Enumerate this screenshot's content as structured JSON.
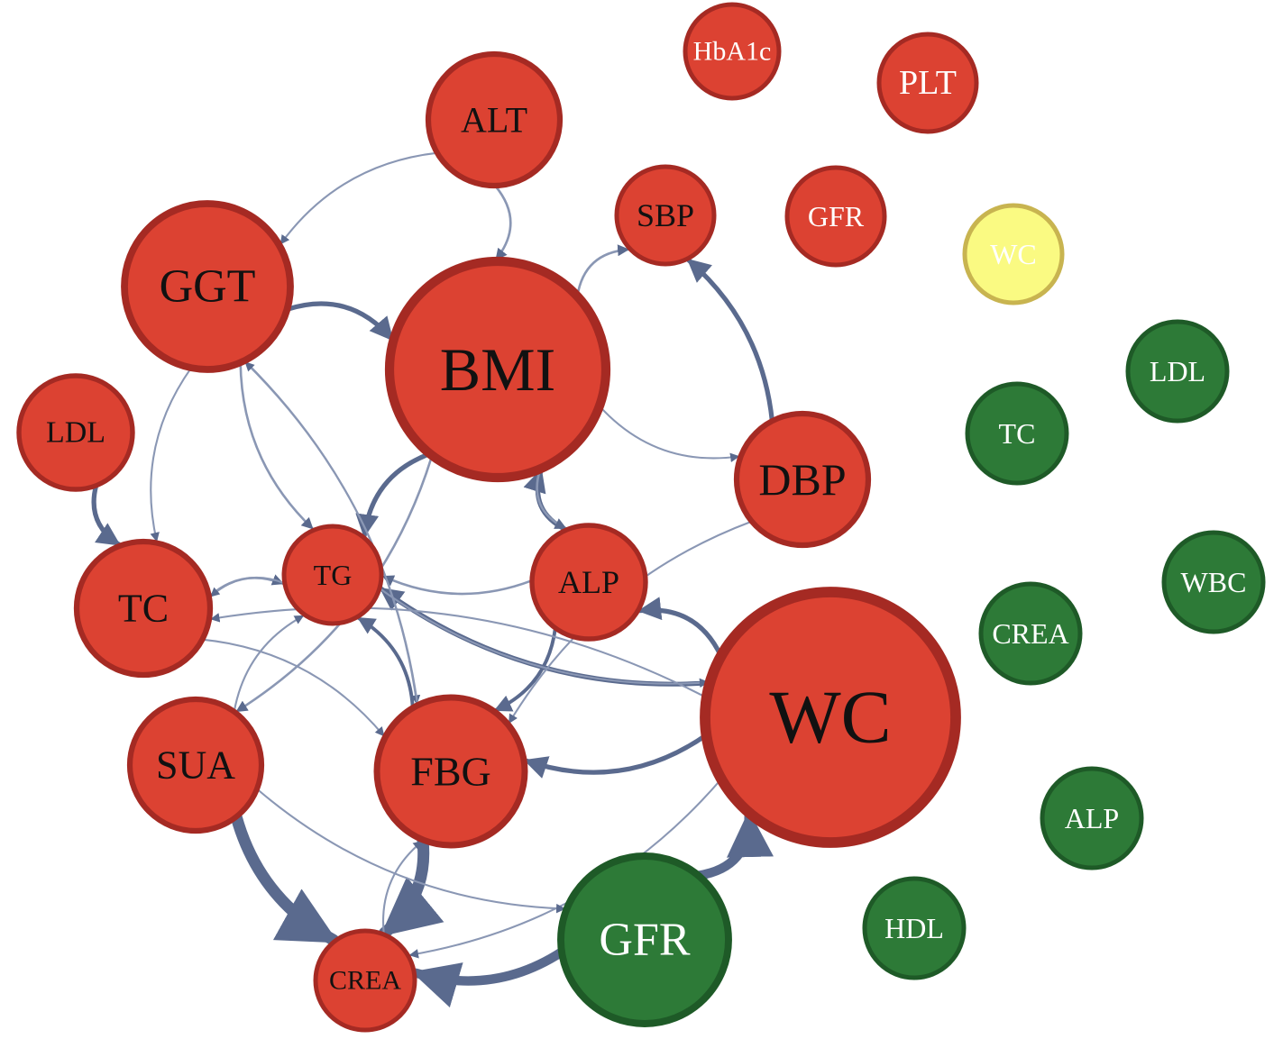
{
  "colors": {
    "red_fill": "#dc4232",
    "red_stroke": "#a52a23",
    "green_fill": "#2d7a37",
    "green_stroke": "#1e5a27",
    "yellow_fill": "#fafa82",
    "yellow_stroke": "#c8b450",
    "edge": "#5a6a8e",
    "edge_light": "#8a97b4",
    "label_dark": "#111111",
    "label_light": "#ffffff"
  },
  "nodes": [
    {
      "id": "hba1c_r",
      "label": "HbA1c",
      "group": "red"
    },
    {
      "id": "plt_r",
      "label": "PLT",
      "group": "red"
    },
    {
      "id": "alt_r",
      "label": "ALT",
      "group": "red"
    },
    {
      "id": "sbp_r",
      "label": "SBP",
      "group": "red"
    },
    {
      "id": "gfr_r",
      "label": "GFR",
      "group": "red"
    },
    {
      "id": "wc_y",
      "label": "WC",
      "group": "yellow"
    },
    {
      "id": "ggt_r",
      "label": "GGT",
      "group": "red"
    },
    {
      "id": "bmi_r",
      "label": "BMI",
      "group": "red"
    },
    {
      "id": "ldl_r",
      "label": "LDL",
      "group": "red"
    },
    {
      "id": "dbp_r",
      "label": "DBP",
      "group": "red"
    },
    {
      "id": "tc_r",
      "label": "TC",
      "group": "red"
    },
    {
      "id": "tg_r",
      "label": "TG",
      "group": "red"
    },
    {
      "id": "alp_r",
      "label": "ALP",
      "group": "red"
    },
    {
      "id": "wc_r",
      "label": "WC",
      "group": "red"
    },
    {
      "id": "sua_r",
      "label": "SUA",
      "group": "red"
    },
    {
      "id": "fbg_r",
      "label": "FBG",
      "group": "red"
    },
    {
      "id": "crea_r",
      "label": "CREA",
      "group": "red"
    },
    {
      "id": "gfr_g",
      "label": "GFR",
      "group": "green"
    },
    {
      "id": "ldl_g",
      "label": "LDL",
      "group": "green"
    },
    {
      "id": "tc_g",
      "label": "TC",
      "group": "green"
    },
    {
      "id": "wbc_g",
      "label": "WBC",
      "group": "green"
    },
    {
      "id": "crea_g",
      "label": "CREA",
      "group": "green"
    },
    {
      "id": "alp_g",
      "label": "ALP",
      "group": "green"
    },
    {
      "id": "hdl_g",
      "label": "HDL",
      "group": "green"
    }
  ],
  "edges": [
    {
      "from": "sua_r",
      "to": "crea_r",
      "weight": 5
    },
    {
      "from": "fbg_r",
      "to": "crea_r",
      "weight": 5
    },
    {
      "from": "gfr_g",
      "to": "wc_r",
      "weight": 4
    },
    {
      "from": "gfr_g",
      "to": "crea_r",
      "weight": 4
    },
    {
      "from": "ldl_r",
      "to": "tc_r",
      "weight": 2
    },
    {
      "from": "ggt_r",
      "to": "bmi_r",
      "weight": 2
    },
    {
      "from": "bmi_r",
      "to": "tg_r",
      "weight": 2
    },
    {
      "from": "alp_r",
      "to": "bmi_r",
      "weight": 2
    },
    {
      "from": "dbp_r",
      "to": "sbp_r",
      "weight": 2
    },
    {
      "from": "wc_r",
      "to": "tg_r",
      "weight": 2
    },
    {
      "from": "wc_r",
      "to": "alp_r",
      "weight": 2
    },
    {
      "from": "wc_r",
      "to": "fbg_r",
      "weight": 2
    },
    {
      "from": "fbg_r",
      "to": "tg_r",
      "weight": 1.5
    },
    {
      "from": "alp_r",
      "to": "fbg_r",
      "weight": 1.5
    },
    {
      "from": "bmi_r",
      "to": "alp_r",
      "weight": 1
    },
    {
      "from": "alt_r",
      "to": "bmi_r",
      "weight": 1
    },
    {
      "from": "alt_r",
      "to": "ggt_r",
      "weight": 0.8
    },
    {
      "from": "bmi_r",
      "to": "sbp_r",
      "weight": 1
    },
    {
      "from": "bmi_r",
      "to": "dbp_r",
      "weight": 0.8
    },
    {
      "from": "bmi_r",
      "to": "sua_r",
      "weight": 1
    },
    {
      "from": "ggt_r",
      "to": "tg_r",
      "weight": 1
    },
    {
      "from": "ggt_r",
      "to": "fbg_r",
      "weight": 0.8
    },
    {
      "from": "ggt_r",
      "to": "tc_r",
      "weight": 0.8
    },
    {
      "from": "tc_r",
      "to": "tg_r",
      "weight": 1
    },
    {
      "from": "tg_r",
      "to": "tc_r",
      "weight": 0.8
    },
    {
      "from": "alp_r",
      "to": "tg_r",
      "weight": 1
    },
    {
      "from": "wc_r",
      "to": "tc_r",
      "weight": 0.8
    },
    {
      "from": "wc_r",
      "to": "crea_r",
      "weight": 0.8
    },
    {
      "from": "dbp_r",
      "to": "fbg_r",
      "weight": 0.8
    },
    {
      "from": "sua_r",
      "to": "tg_r",
      "weight": 0.8
    },
    {
      "from": "fbg_r",
      "to": "ggt_r",
      "weight": 0.8
    },
    {
      "from": "tc_r",
      "to": "fbg_r",
      "weight": 0.8
    },
    {
      "from": "sua_r",
      "to": "gfr_g",
      "weight": 0.8
    },
    {
      "from": "crea_r",
      "to": "fbg_r",
      "weight": 0.8
    },
    {
      "from": "tg_r",
      "to": "wc_r",
      "weight": 0.8
    }
  ]
}
